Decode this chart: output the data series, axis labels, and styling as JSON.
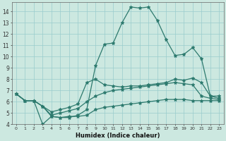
{
  "xlabel": "Humidex (Indice chaleur)",
  "xlim": [
    -0.5,
    23.5
  ],
  "ylim": [
    4,
    14.8
  ],
  "xticks": [
    0,
    1,
    2,
    3,
    4,
    5,
    6,
    7,
    8,
    9,
    10,
    11,
    12,
    13,
    14,
    15,
    16,
    17,
    18,
    19,
    20,
    21,
    22,
    23
  ],
  "yticks": [
    4,
    5,
    6,
    7,
    8,
    9,
    10,
    11,
    12,
    13,
    14
  ],
  "bg_color": "#cce8e0",
  "grid_color": "#99cccc",
  "line_color": "#2d7a6e",
  "line_width": 0.9,
  "marker": "*",
  "marker_size": 3.5,
  "curves": [
    [
      6.7,
      6.1,
      6.1,
      4.0,
      4.7,
      4.6,
      4.6,
      4.8,
      5.3,
      9.2,
      11.1,
      11.2,
      13.0,
      14.4,
      14.3,
      14.4,
      13.2,
      11.5,
      10.1,
      10.2,
      10.8,
      9.8,
      6.5,
      6.5
    ],
    [
      6.7,
      6.1,
      6.1,
      5.6,
      5.1,
      5.3,
      5.5,
      5.8,
      7.7,
      8.0,
      7.5,
      7.4,
      7.3,
      7.4,
      7.4,
      7.5,
      7.6,
      7.7,
      8.0,
      7.9,
      8.1,
      7.7,
      6.5,
      6.3
    ],
    [
      6.7,
      6.1,
      6.1,
      5.6,
      4.8,
      5.0,
      5.2,
      5.4,
      6.0,
      6.5,
      6.8,
      7.0,
      7.1,
      7.2,
      7.3,
      7.4,
      7.5,
      7.6,
      7.7,
      7.6,
      7.5,
      6.5,
      6.3,
      6.2
    ],
    [
      6.7,
      6.1,
      6.1,
      5.6,
      4.7,
      4.6,
      4.7,
      4.7,
      4.8,
      5.3,
      5.5,
      5.6,
      5.7,
      5.8,
      5.9,
      6.0,
      6.1,
      6.2,
      6.2,
      6.2,
      6.1,
      6.1,
      6.1,
      6.1
    ]
  ]
}
